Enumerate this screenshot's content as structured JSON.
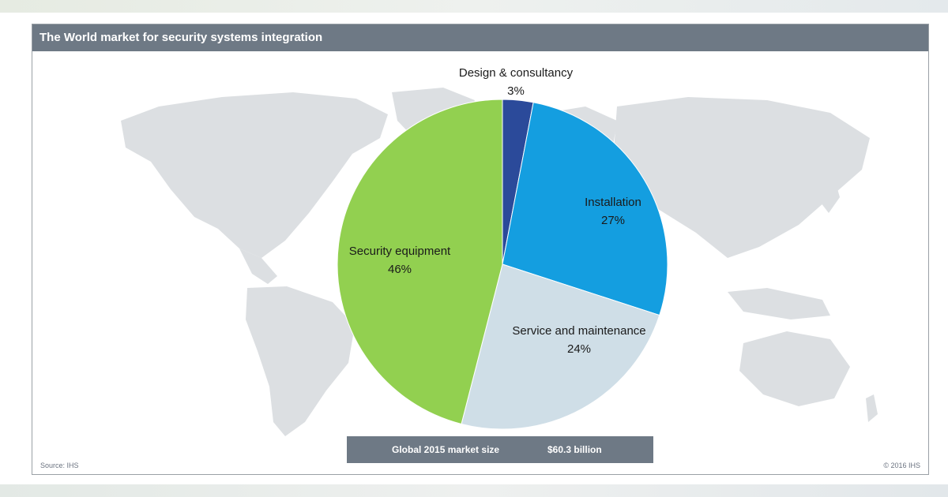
{
  "title": "The World market for security systems integration",
  "chart_data": {
    "type": "pie",
    "slices": [
      {
        "label": "Design & consultancy",
        "value": 3,
        "value_text": "3%",
        "color": "#2b4a9a"
      },
      {
        "label": "Installation",
        "value": 27,
        "value_text": "27%",
        "color": "#149ee0"
      },
      {
        "label": "Service and maintenance",
        "value": 24,
        "value_text": "24%",
        "color": "#cfdee7"
      },
      {
        "label": "Security equipment",
        "value": 46,
        "value_text": "46%",
        "color": "#92d050"
      }
    ]
  },
  "summary": {
    "label": "Global 2015 market size",
    "value": "$60.3 billion"
  },
  "footer": {
    "source": "Source: IHS",
    "copyright": "© 2016 IHS"
  },
  "colors": {
    "title_bar": "#6e7985",
    "map_land": "#dcdfe2"
  }
}
